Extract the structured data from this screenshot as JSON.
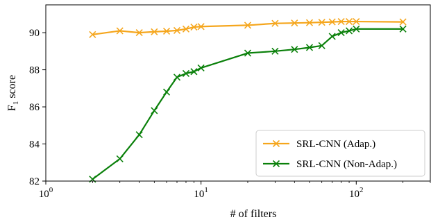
{
  "chart_data": {
    "type": "line",
    "xscale": "log",
    "xlim": [
      1,
      300
    ],
    "ylim": [
      82,
      91.5
    ],
    "xlabel": "# of filters",
    "ylabel_main": "F",
    "ylabel_sub": "1",
    "ylabel_rest": " score",
    "x_ticks": [
      {
        "value": 1,
        "base": "10",
        "exp": "0"
      },
      {
        "value": 10,
        "base": "10",
        "exp": "1"
      },
      {
        "value": 100,
        "base": "10",
        "exp": "2"
      }
    ],
    "y_ticks": [
      82,
      84,
      86,
      88,
      90
    ],
    "grid": false,
    "legend_position": "lower-right",
    "series": [
      {
        "name": "SRL-CNN (Adap.)",
        "color": "#f5a61d",
        "marker": "x",
        "x": [
          2,
          3,
          4,
          5,
          6,
          7,
          8,
          9,
          10,
          20,
          30,
          40,
          50,
          60,
          70,
          80,
          90,
          100,
          200
        ],
        "y": [
          89.9,
          90.1,
          90.0,
          90.05,
          90.08,
          90.12,
          90.2,
          90.3,
          90.33,
          90.4,
          90.5,
          90.52,
          90.54,
          90.56,
          90.58,
          90.6,
          90.6,
          90.6,
          90.58
        ]
      },
      {
        "name": "SRL-CNN (Non-Adap.)",
        "color": "#0a800a",
        "marker": "x",
        "x": [
          2,
          3,
          4,
          5,
          6,
          7,
          8,
          9,
          10,
          20,
          30,
          40,
          50,
          60,
          70,
          80,
          90,
          100,
          200
        ],
        "y": [
          82.1,
          83.2,
          84.5,
          85.8,
          86.8,
          87.6,
          87.8,
          87.9,
          88.1,
          88.9,
          89.0,
          89.1,
          89.2,
          89.3,
          89.8,
          90.0,
          90.1,
          90.2,
          90.2
        ]
      }
    ]
  }
}
